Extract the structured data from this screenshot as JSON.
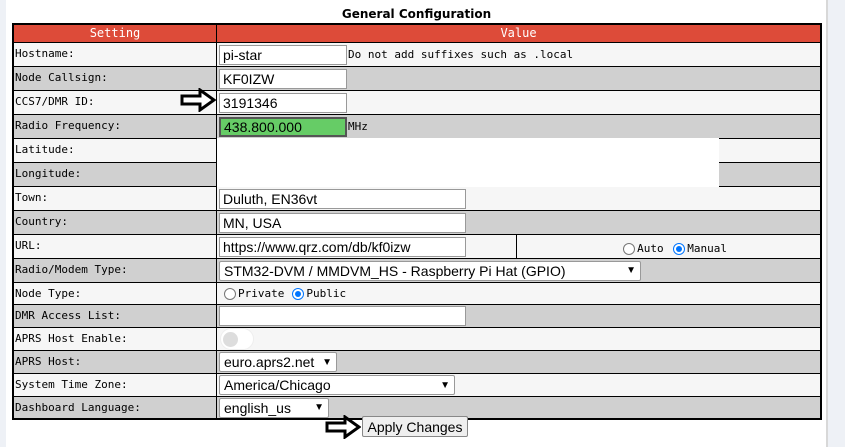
{
  "title": "General Configuration",
  "headers": {
    "setting": "Setting",
    "value": "Value"
  },
  "rows": {
    "hostname": {
      "label": "Hostname:",
      "value": "pi-star",
      "note": "Do not add suffixes such as .local"
    },
    "callsign": {
      "label": "Node Callsign:",
      "value": "KF0IZW"
    },
    "dmr_id": {
      "label": "CCS7/DMR ID:",
      "value": "3191346"
    },
    "frequency": {
      "label": "Radio Frequency:",
      "value": "438.800.000",
      "unit": "MHz"
    },
    "latitude": {
      "label": "Latitude:",
      "value": ""
    },
    "longitude": {
      "label": "Longitude:",
      "value": ""
    },
    "town": {
      "label": "Town:",
      "value": "Duluth, EN36vt"
    },
    "country": {
      "label": "Country:",
      "value": "MN, USA"
    },
    "url": {
      "label": "URL:",
      "value": "https://www.qrz.com/db/kf0izw",
      "opt_auto": "Auto",
      "opt_manual": "Manual",
      "selected": "Manual"
    },
    "modem": {
      "label": "Radio/Modem Type:",
      "value": "STM32-DVM / MMDVM_HS - Raspberry Pi Hat (GPIO)"
    },
    "node_type": {
      "label": "Node Type:",
      "opt_private": "Private",
      "opt_public": "Public",
      "selected": "Public"
    },
    "dmr_access": {
      "label": "DMR Access List:",
      "value": ""
    },
    "aprs_enable": {
      "label": "APRS Host Enable:",
      "enabled": false
    },
    "aprs_host": {
      "label": "APRS Host:",
      "value": "euro.aprs2.net"
    },
    "timezone": {
      "label": "System Time Zone:",
      "value": "America/Chicago"
    },
    "language": {
      "label": "Dashboard Language:",
      "value": "english_us"
    }
  },
  "apply_label": "Apply Changes",
  "colors": {
    "header": "#dd4b39",
    "frequency_bg": "#66cc66",
    "radio_accent": "#0075ff"
  }
}
